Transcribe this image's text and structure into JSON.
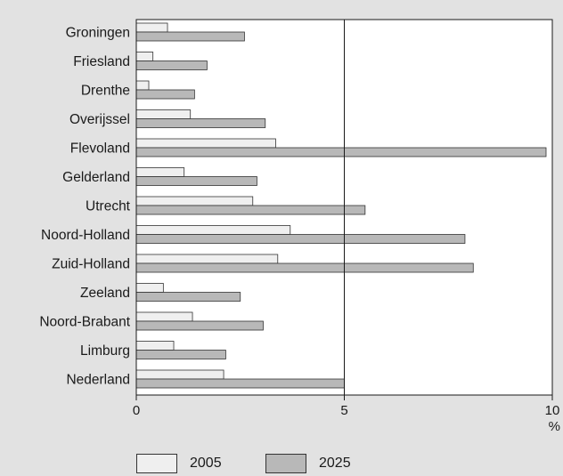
{
  "chart_data": {
    "type": "bar",
    "orientation": "horizontal",
    "categories": [
      "Groningen",
      "Friesland",
      "Drenthe",
      "Overijssel",
      "Flevoland",
      "Gelderland",
      "Utrecht",
      "Noord-Holland",
      "Zuid-Holland",
      "Zeeland",
      "Noord-Brabant",
      "Limburg",
      "Nederland"
    ],
    "series": [
      {
        "name": "2005",
        "color": "#efefef",
        "values": [
          0.75,
          0.4,
          0.3,
          1.3,
          3.35,
          1.15,
          2.8,
          3.7,
          3.4,
          0.65,
          1.35,
          0.9,
          2.1
        ]
      },
      {
        "name": "2025",
        "color": "#b8b8b8",
        "values": [
          2.6,
          1.7,
          1.4,
          3.1,
          9.85,
          2.9,
          5.5,
          7.9,
          8.1,
          2.5,
          3.05,
          2.15,
          5.0
        ]
      }
    ],
    "xlim": [
      0,
      10
    ],
    "xticks": [
      "0",
      "5",
      "10"
    ],
    "xunit": "%",
    "reference_line": 5,
    "grid": false,
    "legend_position": "bottom"
  }
}
